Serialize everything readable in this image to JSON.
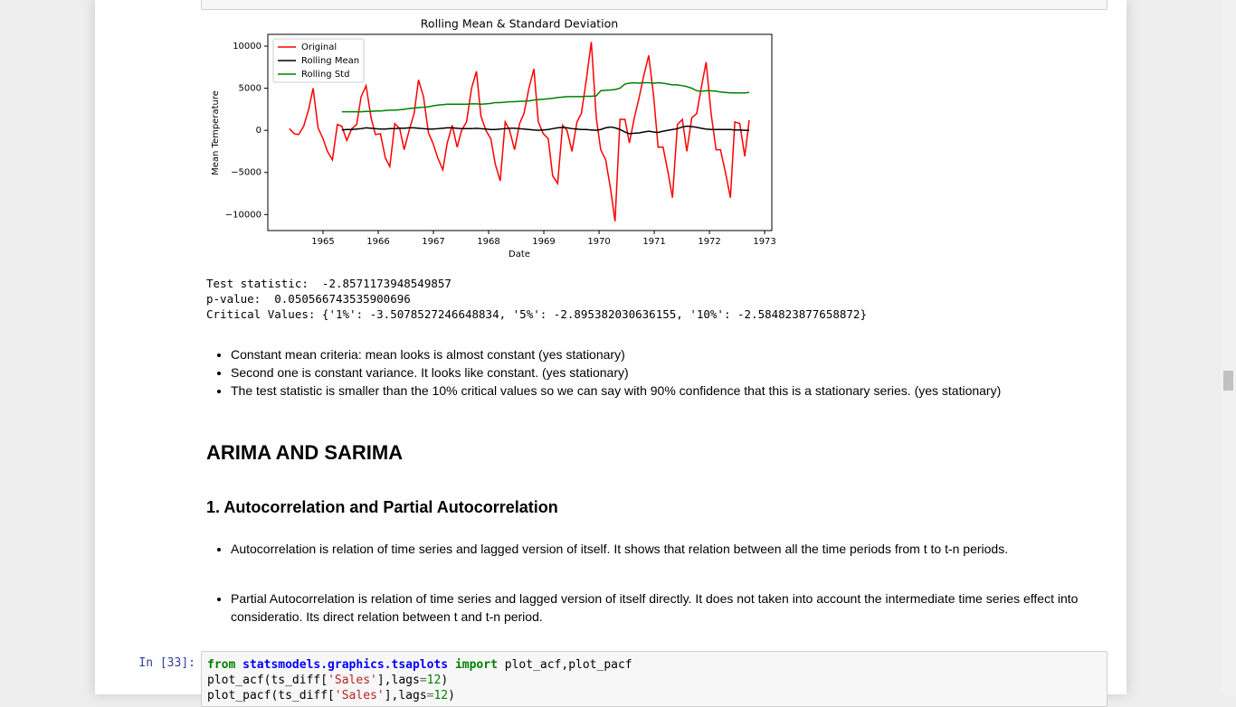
{
  "chart_data": {
    "type": "line",
    "title": "Rolling Mean & Standard Deviation",
    "xlabel": "Date",
    "ylabel": "Mean Temperature",
    "x": [
      1964.39,
      1964.48,
      1964.56,
      1964.65,
      1964.74,
      1964.82,
      1964.91,
      1965.0,
      1965.08,
      1965.17,
      1965.26,
      1965.34,
      1965.43,
      1965.52,
      1965.61,
      1965.69,
      1965.78,
      1965.87,
      1965.95,
      1966.04,
      1966.13,
      1966.21,
      1966.3,
      1966.39,
      1966.47,
      1966.56,
      1966.65,
      1966.73,
      1966.82,
      1966.91,
      1966.99,
      1967.08,
      1967.17,
      1967.25,
      1967.34,
      1967.43,
      1967.51,
      1967.6,
      1967.69,
      1967.78,
      1967.86,
      1967.95,
      1968.04,
      1968.12,
      1968.21,
      1968.3,
      1968.38,
      1968.47,
      1968.56,
      1968.64,
      1968.73,
      1968.82,
      1968.9,
      1968.99,
      1969.08,
      1969.16,
      1969.25,
      1969.34,
      1969.42,
      1969.51,
      1969.6,
      1969.68,
      1969.77,
      1969.86,
      1969.95,
      1970.03,
      1970.12,
      1970.21,
      1970.29,
      1970.38,
      1970.47,
      1970.55,
      1970.64,
      1970.73,
      1970.81,
      1970.9,
      1970.99,
      1971.07,
      1971.16,
      1971.25,
      1971.33,
      1971.42,
      1971.51,
      1971.59,
      1971.68,
      1971.77,
      1971.85,
      1971.94,
      1972.03,
      1972.12,
      1972.2,
      1972.29,
      1972.38,
      1972.46,
      1972.55,
      1972.64,
      1972.72
    ],
    "series": [
      {
        "name": "Original",
        "color": "#ff0000",
        "values": [
          200,
          -400,
          -500,
          500,
          2500,
          5000,
          300,
          -1000,
          -2500,
          -3500,
          700,
          500,
          -1200,
          200,
          700,
          4000,
          5300,
          1500,
          -500,
          -400,
          -3300,
          -4300,
          800,
          200,
          -2300,
          0,
          2000,
          6000,
          4000,
          -300,
          -1500,
          -3300,
          -4700,
          -1500,
          600,
          -2000,
          0,
          1000,
          5000,
          7000,
          1700,
          0,
          -1000,
          -4000,
          -6000,
          1000,
          0,
          -2300,
          800,
          2000,
          5000,
          7300,
          1000,
          -400,
          -1000,
          -5400,
          -6300,
          600,
          0,
          -2500,
          1000,
          2000,
          6000,
          10500,
          1500,
          -2300,
          -3500,
          -7000,
          -10800,
          1300,
          1300,
          -1500,
          1500,
          4000,
          6500,
          8900,
          4000,
          -2000,
          -2000,
          -5000,
          -8000,
          700,
          1300,
          -2500,
          1500,
          2000,
          5000,
          8100,
          2000,
          -2300,
          -2300,
          -5000,
          -8000,
          1000,
          800,
          -3100,
          1200
        ]
      },
      {
        "name": "Rolling Mean",
        "color": "#000000",
        "values": [
          null,
          null,
          null,
          null,
          null,
          null,
          null,
          null,
          null,
          null,
          null,
          50,
          100,
          100,
          150,
          200,
          300,
          250,
          200,
          150,
          150,
          200,
          200,
          250,
          250,
          300,
          300,
          250,
          200,
          150,
          150,
          200,
          250,
          300,
          300,
          250,
          200,
          200,
          200,
          250,
          200,
          150,
          100,
          100,
          150,
          200,
          250,
          250,
          200,
          150,
          100,
          50,
          0,
          50,
          100,
          200,
          300,
          350,
          300,
          200,
          150,
          100,
          100,
          50,
          0,
          100,
          300,
          400,
          300,
          100,
          -200,
          -400,
          -350,
          -300,
          -200,
          -100,
          -200,
          -250,
          -100,
          0,
          100,
          200,
          400,
          500,
          450,
          350,
          250,
          150,
          100,
          100,
          100,
          100,
          100,
          50,
          50,
          0,
          0
        ]
      },
      {
        "name": "Rolling Std",
        "color": "#008000",
        "values": [
          null,
          null,
          null,
          null,
          null,
          null,
          null,
          null,
          null,
          null,
          null,
          2200,
          2200,
          2200,
          2200,
          2200,
          2250,
          2250,
          2300,
          2300,
          2350,
          2400,
          2400,
          2450,
          2500,
          2600,
          2650,
          2700,
          2750,
          2800,
          2900,
          3000,
          3050,
          3100,
          3100,
          3100,
          3100,
          3100,
          3150,
          3150,
          3100,
          3150,
          3200,
          3300,
          3300,
          3350,
          3400,
          3400,
          3450,
          3450,
          3500,
          3600,
          3650,
          3700,
          3750,
          3800,
          3900,
          3950,
          4000,
          4000,
          4000,
          4000,
          4050,
          4050,
          4100,
          4700,
          4750,
          4800,
          4850,
          5000,
          5500,
          5600,
          5650,
          5600,
          5650,
          5650,
          5600,
          5650,
          5600,
          5500,
          5400,
          5400,
          5300,
          5200,
          5000,
          4700,
          4650,
          4700,
          4700,
          4650,
          4550,
          4500,
          4450,
          4450,
          4450,
          4450,
          4500
        ]
      }
    ],
    "xlim": [
      1964.0,
      1973.13
    ],
    "ylim": [
      -11900,
      11400
    ],
    "xticks": [
      1965,
      1966,
      1967,
      1968,
      1969,
      1970,
      1971,
      1972,
      1973
    ],
    "yticks": [
      {
        "value": -10000,
        "label": "−10000"
      },
      {
        "value": -5000,
        "label": "−5000"
      },
      0,
      5000,
      10000
    ],
    "grid": false,
    "legend": "upper left"
  },
  "output": [
    "Test statistic:  -2.8571173948549857",
    "p-value:  0.050566743535900696",
    "Critical Values: {'1%': -3.5078527246648834, '5%': -2.895382030636155, '10%': -2.584823877658872}"
  ],
  "notes": [
    "Constant mean criteria: mean looks is almost constant (yes stationary)",
    "Second one is constant variance. It looks like constant. (yes stationary)",
    "The test statistic is smaller than the 10% critical values so we can say with 90% confidence that this is a stationary series. (yes stationary)"
  ],
  "heading": "ARIMA AND SARIMA",
  "subheading": "1. Autocorrelation and Partial Autocorrelation",
  "bullets": [
    "Autocorrelation is relation of time series and lagged version of itself. It shows that relation between all the time periods from t to t-n periods.",
    "Partial Autocorrelation is relation of time series and lagged version of itself directly. It does not taken into account the intermediate time series effect into consideratio. Its direct relation between t and t-n period."
  ],
  "cell": {
    "prompt": "In [33]:",
    "lines": [
      [
        "from",
        " ",
        "statsmodels.graphics.tsaplots",
        " ",
        "import",
        " plot_acf,plot_pacf"
      ],
      [
        "plot_acf(ts_diff[",
        "'Sales'",
        "],lags",
        "=",
        "12",
        ")"
      ],
      [
        "plot_pacf(ts_diff[",
        "'Sales'",
        "],lags",
        "=",
        "12",
        ")"
      ]
    ]
  }
}
